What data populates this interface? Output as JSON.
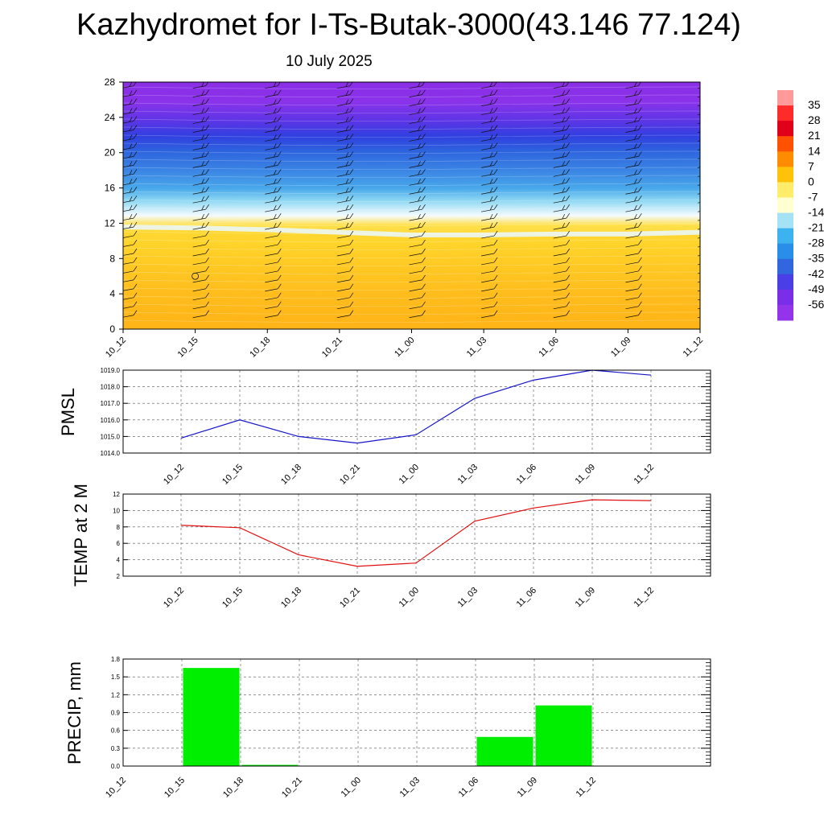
{
  "title": "Kazhydromet for I-Ts-Butak-3000(43.146 77.124)",
  "subtitle": "10 July 2025",
  "colorbar": {
    "labels": [
      "35",
      "28",
      "21",
      "14",
      "7",
      "0",
      "-7",
      "-14",
      "-21",
      "-28",
      "-35",
      "-42",
      "-49",
      "-56"
    ],
    "colors": [
      "#ff9a9a",
      "#ff2a2a",
      "#e0001a",
      "#ff5200",
      "#ff8c00",
      "#ffc20a",
      "#ffec6a",
      "#ffffd2",
      "#a6e2f6",
      "#3cb3ee",
      "#2a8ee8",
      "#3266df",
      "#4a3ee6",
      "#7a2ee8",
      "#9333ea"
    ]
  },
  "chart_data": [
    {
      "type": "heatmap",
      "name": "temperature-cross-section",
      "categories": [
        "10_12",
        "10_15",
        "10_18",
        "10_21",
        "11_00",
        "11_03",
        "11_06",
        "11_09",
        "11_12"
      ],
      "y_ticks": [
        "0",
        "4",
        "8",
        "12",
        "16",
        "20",
        "24",
        "28"
      ],
      "ylim": [
        0,
        28
      ],
      "freezing_level": [
        11.3,
        11.2,
        11.0,
        10.7,
        10.4,
        10.4,
        10.5,
        10.5,
        10.7
      ],
      "wind_barbs": true
    },
    {
      "type": "line",
      "ylabel": "PMSL",
      "color": "#1515c8",
      "categories": [
        "10_12",
        "10_15",
        "10_18",
        "10_21",
        "11_00",
        "11_03",
        "11_06",
        "11_09",
        "11_12"
      ],
      "values": [
        1014.9,
        1016.0,
        1015.0,
        1014.6,
        1015.1,
        1017.3,
        1018.4,
        1019.0,
        1018.7
      ],
      "y_ticks": [
        "1014.0",
        "1015.0",
        "1016.0",
        "1017.0",
        "1018.0",
        "1019.0"
      ],
      "ylim": [
        1014,
        1019
      ],
      "grid": true
    },
    {
      "type": "line",
      "ylabel": "TEMP at 2 M",
      "color": "#e01010",
      "categories": [
        "10_12",
        "10_15",
        "10_18",
        "10_21",
        "11_00",
        "11_03",
        "11_06",
        "11_09",
        "11_12"
      ],
      "values": [
        8.2,
        7.9,
        4.6,
        3.2,
        3.6,
        8.7,
        10.3,
        11.3,
        11.2
      ],
      "y_ticks": [
        "2",
        "4",
        "6",
        "8",
        "10",
        "12"
      ],
      "ylim": [
        2,
        12
      ],
      "grid": true
    },
    {
      "type": "bar",
      "ylabel": "PRECIP, mm",
      "color": "#00ee00",
      "categories": [
        "10_12",
        "10_15",
        "10_18",
        "10_21",
        "11_00",
        "11_03",
        "11_06",
        "11_09",
        "11_12"
      ],
      "values": [
        0,
        1.65,
        0.02,
        0,
        0,
        0,
        0.49,
        1.02,
        0
      ],
      "y_ticks": [
        "0.0",
        "0.3",
        "0.6",
        "0.9",
        "1.2",
        "1.5",
        "1.8"
      ],
      "ylim": [
        0,
        1.8
      ],
      "grid": true
    }
  ]
}
